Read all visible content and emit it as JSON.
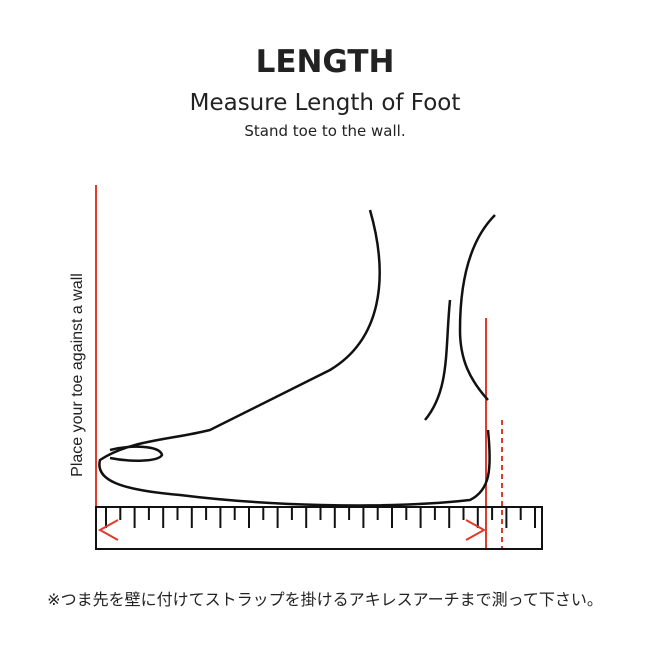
{
  "header": {
    "title": "LENGTH",
    "subtitle": "Measure Length of Foot",
    "instruction": "Stand toe to the wall."
  },
  "diagram": {
    "wall_label": "Place your toe against a wall"
  },
  "note": "※つま先を壁に付けてストラップを掛けるアキレスアーチまで測って下さい。"
}
